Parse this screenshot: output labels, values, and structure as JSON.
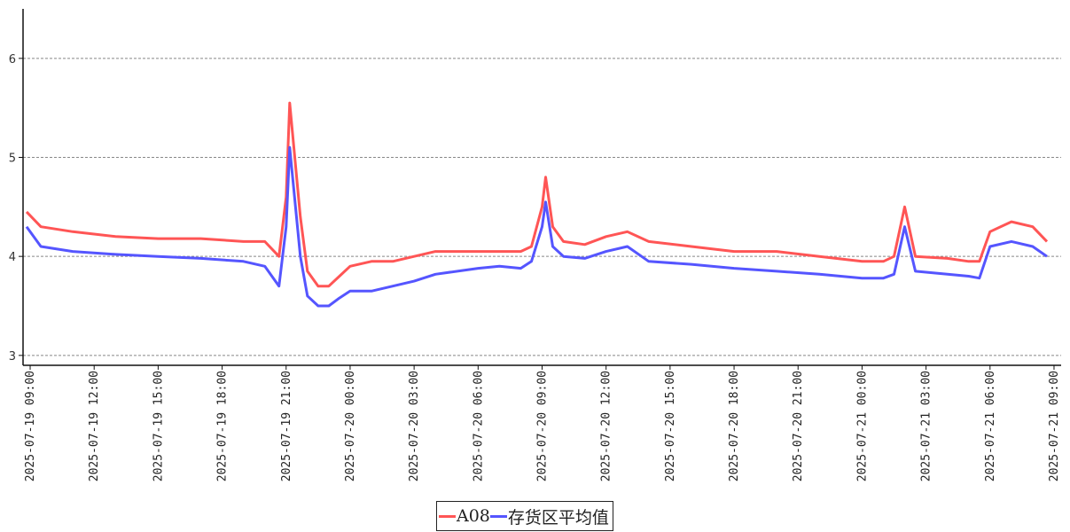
{
  "chart_data": {
    "type": "line",
    "title": "",
    "xlabel": "",
    "ylabel": "",
    "ylim": [
      2.9,
      6.5
    ],
    "xlim": [
      "2025-07-19 08:40",
      "2025-07-21 09:20"
    ],
    "grid": "horizontal dashed",
    "legend_position": "bottom-center",
    "y_ticks": [
      "3",
      "4",
      "5",
      "6"
    ],
    "x_ticks": [
      "2025-07-19 09:00",
      "2025-07-19 12:00",
      "2025-07-19 15:00",
      "2025-07-19 18:00",
      "2025-07-19 21:00",
      "2025-07-20 00:00",
      "2025-07-20 03:00",
      "2025-07-20 06:00",
      "2025-07-20 09:00",
      "2025-07-20 12:00",
      "2025-07-20 15:00",
      "2025-07-20 18:00",
      "2025-07-20 21:00",
      "2025-07-21 00:00",
      "2025-07-21 03:00",
      "2025-07-21 06:00",
      "2025-07-21 09:00"
    ],
    "series": [
      {
        "name": "A08",
        "color": "#ff5555",
        "x": [
          "2025-07-19 08:50",
          "2025-07-19 09:30",
          "2025-07-19 11:00",
          "2025-07-19 13:00",
          "2025-07-19 15:00",
          "2025-07-19 17:00",
          "2025-07-19 19:00",
          "2025-07-19 20:00",
          "2025-07-19 20:40",
          "2025-07-19 21:00",
          "2025-07-19 21:10",
          "2025-07-19 21:40",
          "2025-07-19 22:00",
          "2025-07-19 22:30",
          "2025-07-19 23:00",
          "2025-07-19 23:30",
          "2025-07-20 00:00",
          "2025-07-20 01:00",
          "2025-07-20 02:00",
          "2025-07-20 03:00",
          "2025-07-20 04:00",
          "2025-07-20 06:00",
          "2025-07-20 07:00",
          "2025-07-20 08:00",
          "2025-07-20 08:30",
          "2025-07-20 09:00",
          "2025-07-20 09:10",
          "2025-07-20 09:30",
          "2025-07-20 10:00",
          "2025-07-20 11:00",
          "2025-07-20 12:00",
          "2025-07-20 13:00",
          "2025-07-20 14:00",
          "2025-07-20 16:00",
          "2025-07-20 18:00",
          "2025-07-20 20:00",
          "2025-07-20 22:00",
          "2025-07-21 00:00",
          "2025-07-21 01:00",
          "2025-07-21 01:30",
          "2025-07-21 02:00",
          "2025-07-21 02:30",
          "2025-07-21 04:00",
          "2025-07-21 05:00",
          "2025-07-21 05:30",
          "2025-07-21 06:00",
          "2025-07-21 07:00",
          "2025-07-21 08:00",
          "2025-07-21 08:40"
        ],
        "values": [
          4.45,
          4.3,
          4.25,
          4.2,
          4.18,
          4.18,
          4.15,
          4.15,
          4.0,
          4.6,
          5.55,
          4.4,
          3.85,
          3.7,
          3.7,
          3.8,
          3.9,
          3.95,
          3.95,
          4.0,
          4.05,
          4.05,
          4.05,
          4.05,
          4.1,
          4.5,
          4.8,
          4.3,
          4.15,
          4.12,
          4.2,
          4.25,
          4.15,
          4.1,
          4.05,
          4.05,
          4.0,
          3.95,
          3.95,
          4.0,
          4.5,
          4.0,
          3.98,
          3.95,
          3.95,
          4.25,
          4.35,
          4.3,
          4.15
        ]
      },
      {
        "name": "存货区平均值",
        "color": "#5555ff",
        "x": [
          "2025-07-19 08:50",
          "2025-07-19 09:30",
          "2025-07-19 11:00",
          "2025-07-19 13:00",
          "2025-07-19 15:00",
          "2025-07-19 17:00",
          "2025-07-19 19:00",
          "2025-07-19 20:00",
          "2025-07-19 20:40",
          "2025-07-19 21:00",
          "2025-07-19 21:10",
          "2025-07-19 21:40",
          "2025-07-19 22:00",
          "2025-07-19 22:30",
          "2025-07-19 23:00",
          "2025-07-19 23:30",
          "2025-07-20 00:00",
          "2025-07-20 01:00",
          "2025-07-20 02:00",
          "2025-07-20 03:00",
          "2025-07-20 04:00",
          "2025-07-20 06:00",
          "2025-07-20 07:00",
          "2025-07-20 08:00",
          "2025-07-20 08:30",
          "2025-07-20 09:00",
          "2025-07-20 09:10",
          "2025-07-20 09:30",
          "2025-07-20 10:00",
          "2025-07-20 11:00",
          "2025-07-20 12:00",
          "2025-07-20 13:00",
          "2025-07-20 14:00",
          "2025-07-20 16:00",
          "2025-07-20 18:00",
          "2025-07-20 20:00",
          "2025-07-20 22:00",
          "2025-07-21 00:00",
          "2025-07-21 01:00",
          "2025-07-21 01:30",
          "2025-07-21 02:00",
          "2025-07-21 02:30",
          "2025-07-21 04:00",
          "2025-07-21 05:00",
          "2025-07-21 05:30",
          "2025-07-21 06:00",
          "2025-07-21 07:00",
          "2025-07-21 08:00",
          "2025-07-21 08:40"
        ],
        "values": [
          4.3,
          4.1,
          4.05,
          4.02,
          4.0,
          3.98,
          3.95,
          3.9,
          3.7,
          4.3,
          5.1,
          4.0,
          3.6,
          3.5,
          3.5,
          3.58,
          3.65,
          3.65,
          3.7,
          3.75,
          3.82,
          3.88,
          3.9,
          3.88,
          3.95,
          4.3,
          4.55,
          4.1,
          4.0,
          3.98,
          4.05,
          4.1,
          3.95,
          3.92,
          3.88,
          3.85,
          3.82,
          3.78,
          3.78,
          3.82,
          4.3,
          3.85,
          3.82,
          3.8,
          3.78,
          4.1,
          4.15,
          4.1,
          4.0
        ]
      }
    ]
  }
}
